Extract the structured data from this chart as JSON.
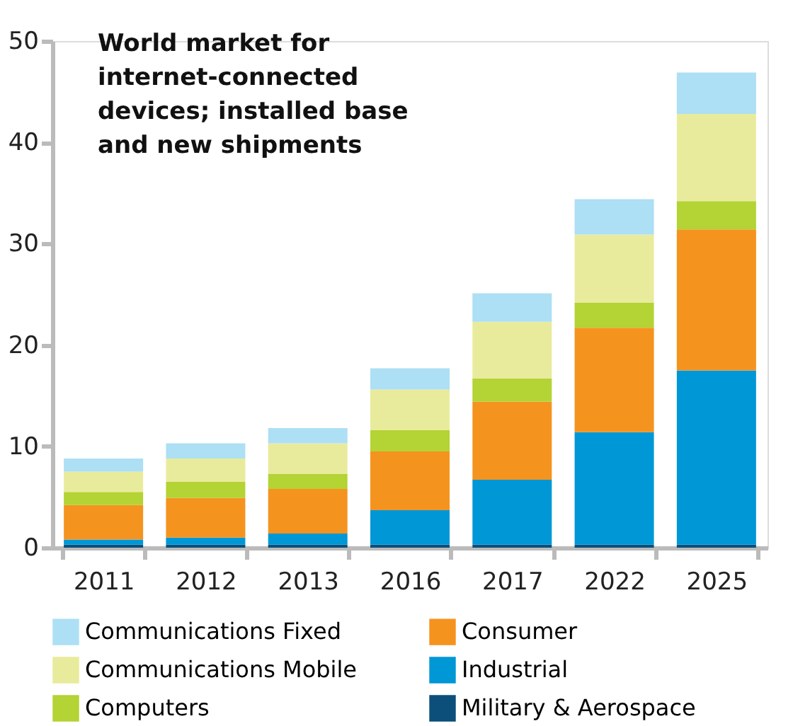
{
  "chart_data": {
    "type": "bar",
    "stacked": true,
    "title": "World market for internet-connected devices; installed base and new shipments",
    "categories": [
      "2011",
      "2012",
      "2013",
      "2016",
      "2017",
      "2022",
      "2025"
    ],
    "series": [
      {
        "name": "Military & Aerospace",
        "color": "#0b4f7a",
        "values": [
          0.3,
          0.3,
          0.3,
          0.3,
          0.3,
          0.3,
          0.3
        ]
      },
      {
        "name": "Industrial",
        "color": "#0097d6",
        "values": [
          0.5,
          0.7,
          1.1,
          3.4,
          6.4,
          11.1,
          17.2
        ]
      },
      {
        "name": "Consumer",
        "color": "#f5931f",
        "values": [
          3.4,
          3.9,
          4.4,
          5.8,
          7.7,
          10.3,
          13.9
        ]
      },
      {
        "name": "Computers",
        "color": "#b4d334",
        "values": [
          1.3,
          1.6,
          1.5,
          2.1,
          2.3,
          2.5,
          2.8
        ]
      },
      {
        "name": "Communications Mobile",
        "color": "#e9eb9c",
        "values": [
          2.0,
          2.3,
          3.0,
          4.0,
          5.6,
          6.7,
          8.6
        ]
      },
      {
        "name": "Communications Fixed",
        "color": "#addff5",
        "values": [
          1.3,
          1.5,
          1.5,
          2.1,
          2.8,
          3.5,
          4.1
        ]
      }
    ],
    "ylim": [
      0,
      50
    ],
    "yticks": [
      0,
      10,
      20,
      30,
      40,
      50
    ],
    "grid": false,
    "legend": "bottom"
  }
}
